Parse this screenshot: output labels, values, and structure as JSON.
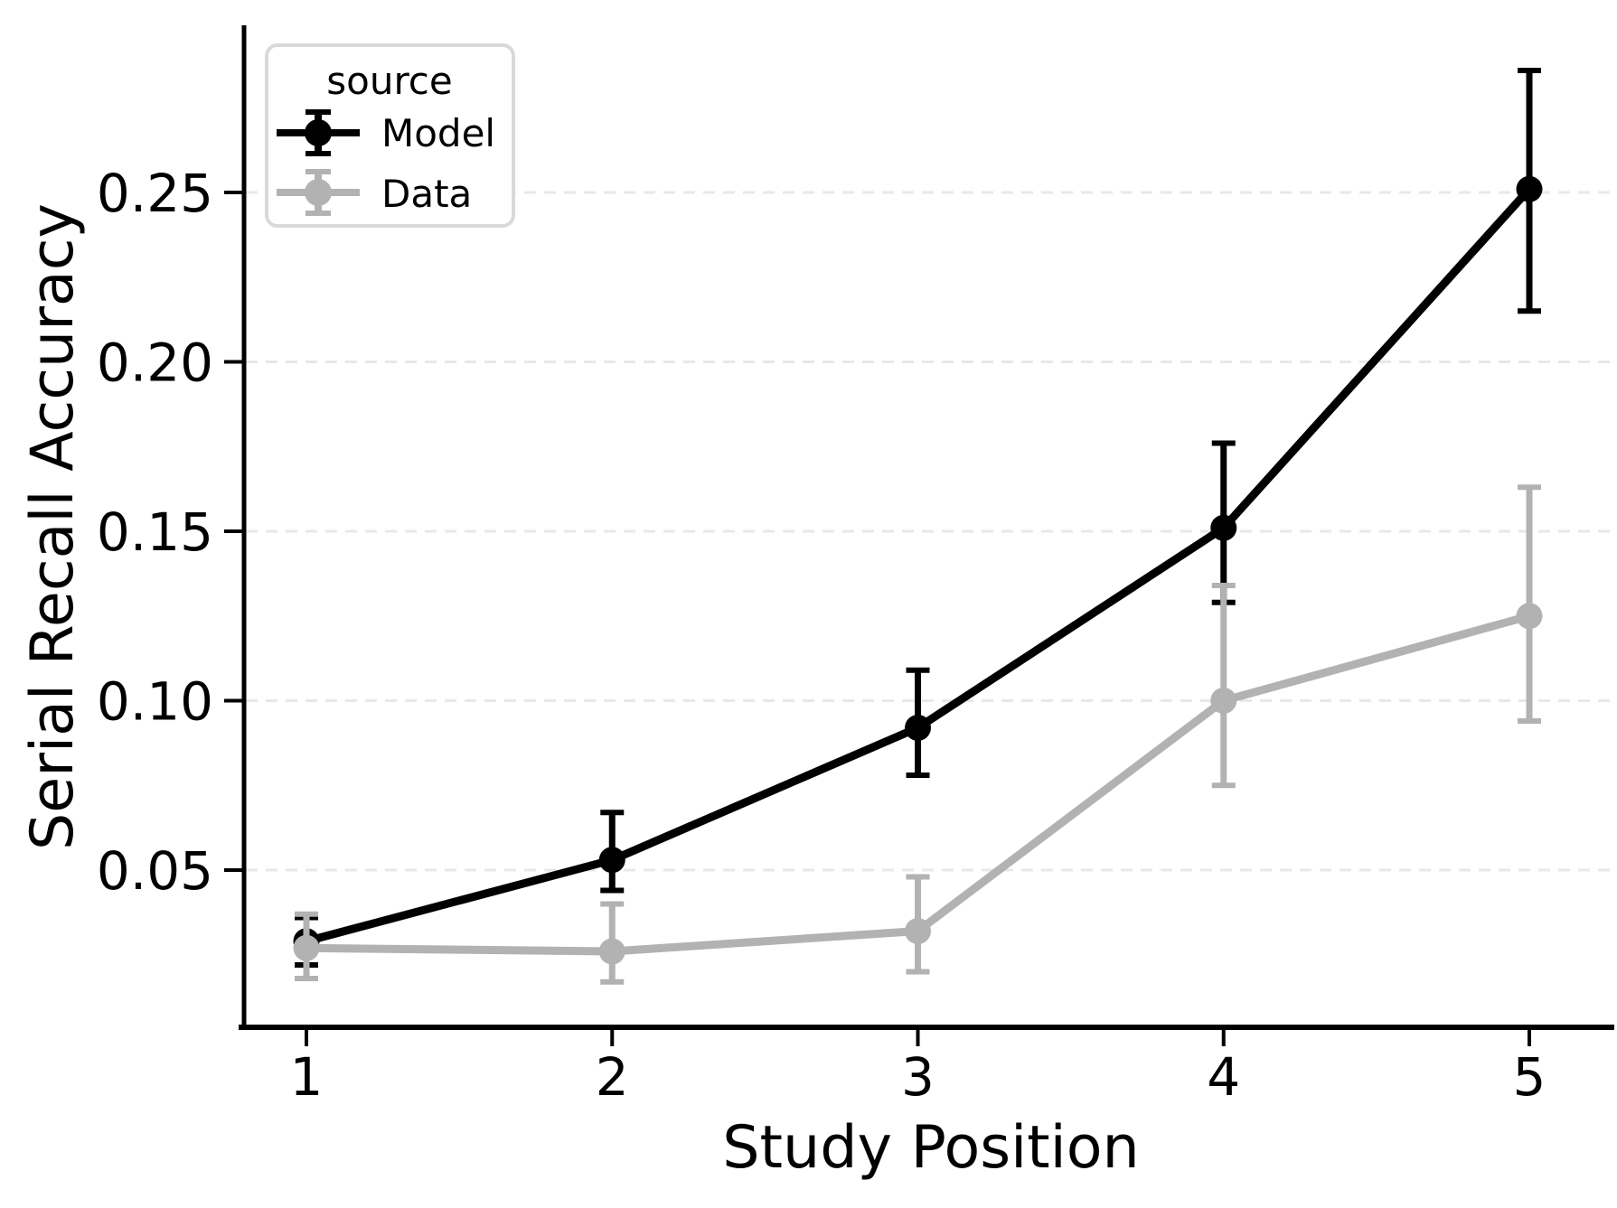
{
  "figure": {
    "background": "#ffffff",
    "plot_type_note": "errorbar line chart"
  },
  "chart_data": {
    "type": "line",
    "title": "",
    "xlabel": "Study Position",
    "ylabel": "Serial Recall Accuracy",
    "x": [
      1,
      2,
      3,
      4,
      5
    ],
    "x_tick_labels": [
      "1",
      "2",
      "3",
      "4",
      "5"
    ],
    "y_ticks": [
      0.05,
      0.1,
      0.15,
      0.2,
      0.25
    ],
    "y_tick_labels": [
      "0.05",
      "0.10",
      "0.15",
      "0.20",
      "0.25"
    ],
    "xlim": [
      0.8,
      5.3
    ],
    "ylim": [
      0.004,
      0.299
    ],
    "grid": {
      "axis": "y",
      "style": "dashed",
      "color": "#e8e8e8"
    },
    "legend": {
      "title": "source",
      "position": "upper left"
    },
    "series": [
      {
        "name": "Model",
        "color": "#000000",
        "marker": "circle-with-errorbar",
        "values": [
          0.029,
          0.053,
          0.092,
          0.151,
          0.251
        ],
        "err_low": [
          0.022,
          0.044,
          0.078,
          0.129,
          0.215
        ],
        "err_high": [
          0.036,
          0.067,
          0.109,
          0.176,
          0.286
        ]
      },
      {
        "name": "Data",
        "color": "#b2b2b2",
        "marker": "circle-with-errorbar",
        "values": [
          0.027,
          0.026,
          0.032,
          0.1,
          0.125
        ],
        "err_low": [
          0.018,
          0.017,
          0.02,
          0.075,
          0.094
        ],
        "err_high": [
          0.037,
          0.04,
          0.048,
          0.134,
          0.163
        ]
      }
    ]
  }
}
